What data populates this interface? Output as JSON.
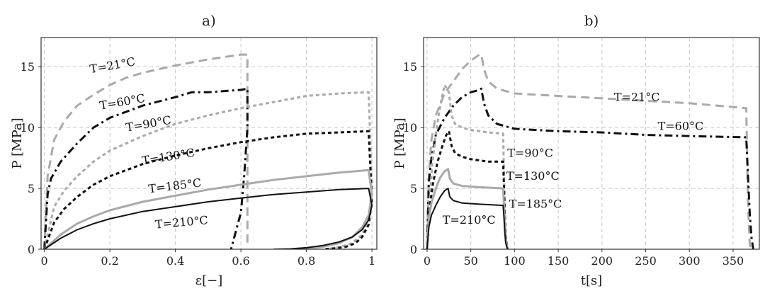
{
  "chart_data": [
    {
      "panel_label": "a)",
      "type": "line",
      "xlabel": "ε[−]",
      "ylabel": "P [MPa]",
      "xlim": [
        -0.01,
        1.015
      ],
      "ylim": [
        0,
        17.4
      ],
      "xticks": [
        0,
        0.2,
        0.4,
        0.6,
        0.8,
        1
      ],
      "xtick_labels": [
        "0",
        "0.2",
        "0.4",
        "0.6",
        "0.8",
        "1"
      ],
      "yticks": [
        0,
        5,
        10,
        15
      ],
      "ytick_labels": [
        "0",
        "5",
        "10",
        "15"
      ],
      "grid": true,
      "series": [
        {
          "name": "T=21°C",
          "color": "#aaaaaa",
          "dash": "dashed",
          "width": 3,
          "x": [
            0,
            0.01,
            0.03,
            0.06,
            0.1,
            0.15,
            0.2,
            0.25,
            0.3,
            0.4,
            0.5,
            0.6,
            0.61,
            0.62,
            0.62
          ],
          "y": [
            0,
            6,
            9,
            10.5,
            11.8,
            12.7,
            13.5,
            14.1,
            14.5,
            15.1,
            15.6,
            16.0,
            16.0,
            16.0,
            0.5
          ]
        },
        {
          "name": "T=60°C",
          "color": "#111111",
          "dash": "dashdot",
          "width": 3,
          "x": [
            0,
            0.01,
            0.02,
            0.05,
            0.1,
            0.15,
            0.2,
            0.3,
            0.4,
            0.45,
            0.5,
            0.55,
            0.6,
            0.62,
            0.62,
            0.61,
            0.6,
            0.58,
            0.57
          ],
          "y": [
            0,
            4.5,
            5.8,
            7.2,
            8.7,
            10.0,
            10.8,
            11.8,
            12.5,
            12.9,
            12.9,
            13.0,
            13.1,
            13.2,
            10.0,
            6.0,
            3.0,
            1.0,
            0
          ]
        },
        {
          "name": "T=90°C",
          "color": "#aaaaaa",
          "dash": "dotted",
          "width": 3,
          "x": [
            0,
            0.03,
            0.06,
            0.1,
            0.15,
            0.2,
            0.3,
            0.4,
            0.5,
            0.6,
            0.7,
            0.8,
            0.9,
            0.99,
            1.0,
            0.99,
            0.97,
            0.94,
            0.9,
            0.86
          ],
          "y": [
            0,
            3.5,
            4.8,
            6.0,
            7.2,
            8.1,
            9.3,
            10.3,
            11.0,
            11.6,
            12.1,
            12.6,
            12.8,
            12.9,
            5.0,
            2.5,
            1.2,
            0.5,
            0.15,
            0
          ]
        },
        {
          "name": "T=130°C",
          "color": "#111111",
          "dash": "dotted",
          "width": 3,
          "x": [
            0,
            0.03,
            0.06,
            0.1,
            0.15,
            0.2,
            0.3,
            0.4,
            0.5,
            0.6,
            0.7,
            0.8,
            0.9,
            0.99,
            1.0,
            0.99,
            0.97,
            0.95,
            0.92,
            0.88,
            0.85
          ],
          "y": [
            0,
            2.2,
            3.3,
            4.3,
            5.3,
            6.0,
            7.0,
            7.7,
            8.3,
            8.8,
            9.2,
            9.5,
            9.6,
            9.7,
            4.0,
            2.0,
            1.0,
            0.5,
            0.2,
            0.05,
            0
          ]
        },
        {
          "name": "T=185°C",
          "color": "#aaaaaa",
          "dash": "solid",
          "width": 3,
          "x": [
            0,
            0.05,
            0.1,
            0.15,
            0.2,
            0.3,
            0.4,
            0.5,
            0.6,
            0.7,
            0.8,
            0.9,
            0.99,
            1.0,
            0.99,
            0.97,
            0.94,
            0.9,
            0.85,
            0.8,
            0.76
          ],
          "y": [
            0,
            1.2,
            2.1,
            2.7,
            3.2,
            3.9,
            4.4,
            4.9,
            5.3,
            5.7,
            6.0,
            6.3,
            6.5,
            4.5,
            2.8,
            1.8,
            1.0,
            0.5,
            0.2,
            0.05,
            0
          ]
        },
        {
          "name": "T=210°C",
          "color": "#111111",
          "dash": "solid",
          "width": 2,
          "x": [
            0,
            0.05,
            0.1,
            0.15,
            0.2,
            0.3,
            0.4,
            0.5,
            0.6,
            0.7,
            0.8,
            0.9,
            0.99,
            1.0,
            0.99,
            0.97,
            0.94,
            0.9,
            0.85,
            0.8,
            0.75,
            0.7
          ],
          "y": [
            0,
            0.9,
            1.6,
            2.1,
            2.5,
            3.1,
            3.5,
            3.9,
            4.2,
            4.5,
            4.7,
            4.9,
            5.0,
            3.6,
            2.4,
            1.6,
            1.0,
            0.6,
            0.3,
            0.12,
            0.03,
            0
          ]
        }
      ],
      "annotations": [
        {
          "text": "T=21°C",
          "x": 0.21,
          "y": 14.8,
          "rotate": -10
        },
        {
          "text": "T=60°C",
          "x": 0.24,
          "y": 11.8,
          "rotate": -10
        },
        {
          "text": "T=90°C",
          "x": 0.32,
          "y": 10.0,
          "rotate": -10
        },
        {
          "text": "T=130°C",
          "x": 0.38,
          "y": 7.3,
          "rotate": -9
        },
        {
          "text": "T=185°C",
          "x": 0.4,
          "y": 4.9,
          "rotate": -7
        },
        {
          "text": "T=210°C",
          "x": 0.42,
          "y": 1.9,
          "rotate": -5
        }
      ]
    },
    {
      "panel_label": "b)",
      "type": "line",
      "xlabel": "t[s]",
      "ylabel": "P [MPa]",
      "xlim": [
        -4,
        380
      ],
      "ylim": [
        0,
        17.4
      ],
      "xticks": [
        0,
        50,
        100,
        150,
        200,
        250,
        300,
        350
      ],
      "xtick_labels": [
        "0",
        "50",
        "100",
        "150",
        "200",
        "250",
        "300",
        "350"
      ],
      "yticks": [
        0,
        5,
        10,
        15
      ],
      "ytick_labels": [
        "0",
        "5",
        "10",
        "15"
      ],
      "grid": true,
      "series": [
        {
          "name": "T=21°C",
          "color": "#aaaaaa",
          "dash": "dashed",
          "width": 3,
          "x": [
            0,
            2,
            5,
            10,
            20,
            30,
            40,
            50,
            60,
            62,
            65,
            70,
            80,
            100,
            150,
            200,
            250,
            300,
            365,
            366,
            367,
            368,
            369,
            370
          ],
          "y": [
            0,
            6,
            9,
            11,
            12.8,
            13.8,
            14.8,
            15.5,
            16.0,
            16.0,
            14.8,
            13.8,
            13.2,
            12.8,
            12.6,
            12.4,
            12.2,
            12.0,
            11.6,
            8,
            4,
            2,
            0.5,
            0
          ]
        },
        {
          "name": "T=60°C",
          "color": "#111111",
          "dash": "dashdot",
          "width": 3,
          "x": [
            0,
            2,
            5,
            10,
            20,
            30,
            40,
            50,
            60,
            62,
            65,
            70,
            80,
            100,
            150,
            200,
            250,
            300,
            365,
            367,
            369,
            371,
            373
          ],
          "y": [
            0,
            5.5,
            7.5,
            9.4,
            10.8,
            11.8,
            12.5,
            12.9,
            13.1,
            13.2,
            12.0,
            11.0,
            10.3,
            9.9,
            9.7,
            9.6,
            9.4,
            9.3,
            9.2,
            6,
            3,
            1,
            0
          ]
        },
        {
          "name": "T=90°C",
          "color": "#aaaaaa",
          "dash": "dotted",
          "width": 3,
          "x": [
            0,
            2,
            4,
            6,
            10,
            15,
            20,
            25,
            28,
            32,
            40,
            50,
            70,
            87,
            88,
            89,
            90,
            91,
            93
          ],
          "y": [
            0,
            3.0,
            5.0,
            7.0,
            9.5,
            11.8,
            13.5,
            12.9,
            11.0,
            10.3,
            10.0,
            9.8,
            9.6,
            9.5,
            6,
            3,
            1.5,
            0.5,
            0
          ]
        },
        {
          "name": "T=130°C",
          "color": "#111111",
          "dash": "dotted",
          "width": 3,
          "x": [
            0,
            2,
            4,
            7,
            12,
            18,
            22,
            25,
            28,
            32,
            40,
            50,
            70,
            87,
            88,
            89,
            90,
            92
          ],
          "y": [
            0,
            2.5,
            4.0,
            5.5,
            7.2,
            8.6,
            9.4,
            9.7,
            8.5,
            7.9,
            7.6,
            7.4,
            7.2,
            7.2,
            5,
            2.5,
            1,
            0
          ]
        },
        {
          "name": "T=185°C",
          "color": "#aaaaaa",
          "dash": "solid",
          "width": 3,
          "x": [
            0,
            2,
            5,
            10,
            15,
            20,
            24,
            26,
            30,
            40,
            60,
            87,
            88,
            89,
            90,
            92
          ],
          "y": [
            0,
            2.5,
            3.8,
            5.0,
            5.9,
            6.4,
            6.6,
            5.8,
            5.4,
            5.2,
            5.1,
            5.0,
            3.5,
            2,
            0.8,
            0
          ]
        },
        {
          "name": "T=210°C",
          "color": "#111111",
          "dash": "solid",
          "width": 2,
          "x": [
            0,
            2,
            5,
            10,
            15,
            20,
            24,
            26,
            30,
            40,
            60,
            87,
            88,
            89,
            90,
            92
          ],
          "y": [
            0,
            1.8,
            2.8,
            3.6,
            4.3,
            4.8,
            5.0,
            4.3,
            4.0,
            3.8,
            3.7,
            3.6,
            2.5,
            1.3,
            0.5,
            0
          ]
        }
      ],
      "annotations": [
        {
          "text": "T=21°C",
          "x": 240,
          "y": 12.2,
          "rotate": 0
        },
        {
          "text": "T=60°C",
          "x": 290,
          "y": 9.8,
          "rotate": 0
        },
        {
          "text": "T=90°C",
          "x": 118,
          "y": 7.6,
          "rotate": 0
        },
        {
          "text": "T=130°C",
          "x": 121,
          "y": 5.7,
          "rotate": 0
        },
        {
          "text": "T=185°C",
          "x": 124,
          "y": 3.4,
          "rotate": 0
        },
        {
          "text": "T=210°C",
          "x": 48,
          "y": 2.1,
          "rotate": 0
        }
      ]
    }
  ]
}
